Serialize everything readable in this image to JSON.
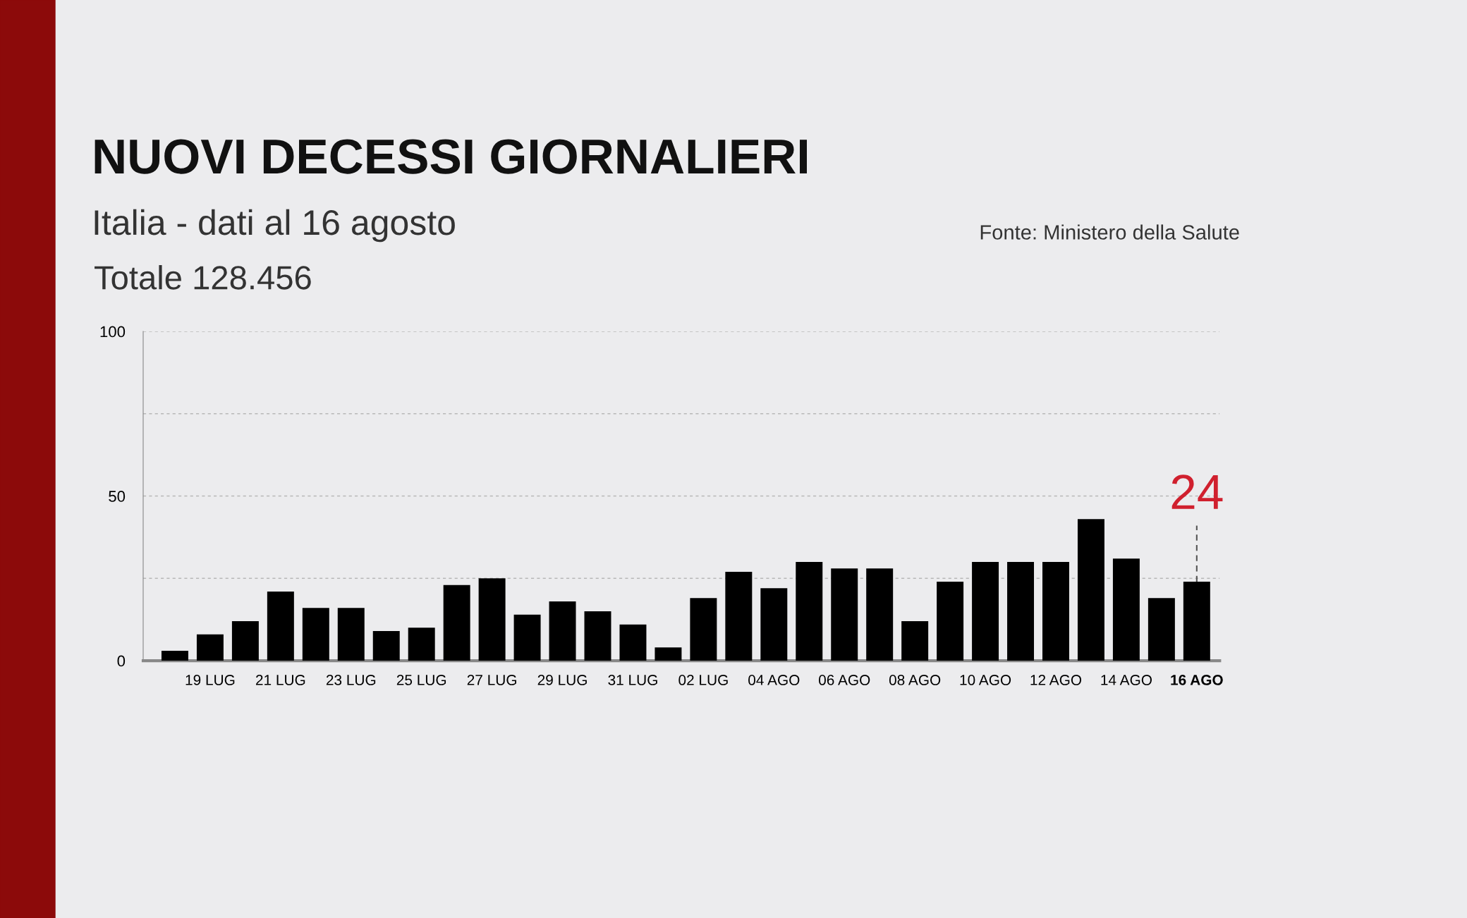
{
  "chart_data": {
    "type": "bar",
    "title": "NUOVI DECESSI GIORNALIERI",
    "subtitle": "Italia - dati al 16 agosto",
    "annotations": [
      "Fonte: Ministero della Salute",
      "Totale 128.456"
    ],
    "categories": [
      null,
      "19 LUG",
      null,
      "21 LUG",
      null,
      "23 LUG",
      null,
      "25 LUG",
      null,
      "27 LUG",
      null,
      "29 LUG",
      null,
      "31 LUG",
      null,
      "02 LUG",
      null,
      "04 AGO",
      null,
      "06 AGO",
      null,
      "08 AGO",
      null,
      "10 AGO",
      null,
      "12 AGO",
      null,
      "14 AGO",
      null,
      "16 AGO"
    ],
    "values": [
      3,
      8,
      12,
      21,
      16,
      16,
      9,
      10,
      23,
      25,
      14,
      18,
      15,
      11,
      4,
      19,
      27,
      22,
      30,
      28,
      28,
      12,
      24,
      30,
      30,
      30,
      43,
      31,
      19,
      24
    ],
    "value_labels": [
      null,
      null,
      null,
      null,
      null,
      null,
      null,
      null,
      null,
      null,
      null,
      null,
      null,
      null,
      null,
      null,
      null,
      null,
      null,
      null,
      null,
      null,
      null,
      null,
      null,
      null,
      null,
      null,
      null,
      "24"
    ],
    "color": "#000000",
    "ylim": [
      0,
      100
    ],
    "yticks": [
      0,
      {
        "value": 25,
        "label": null
      },
      50,
      {
        "value": 75,
        "label": null
      },
      100
    ],
    "grid": "y",
    "legend": false
  }
}
